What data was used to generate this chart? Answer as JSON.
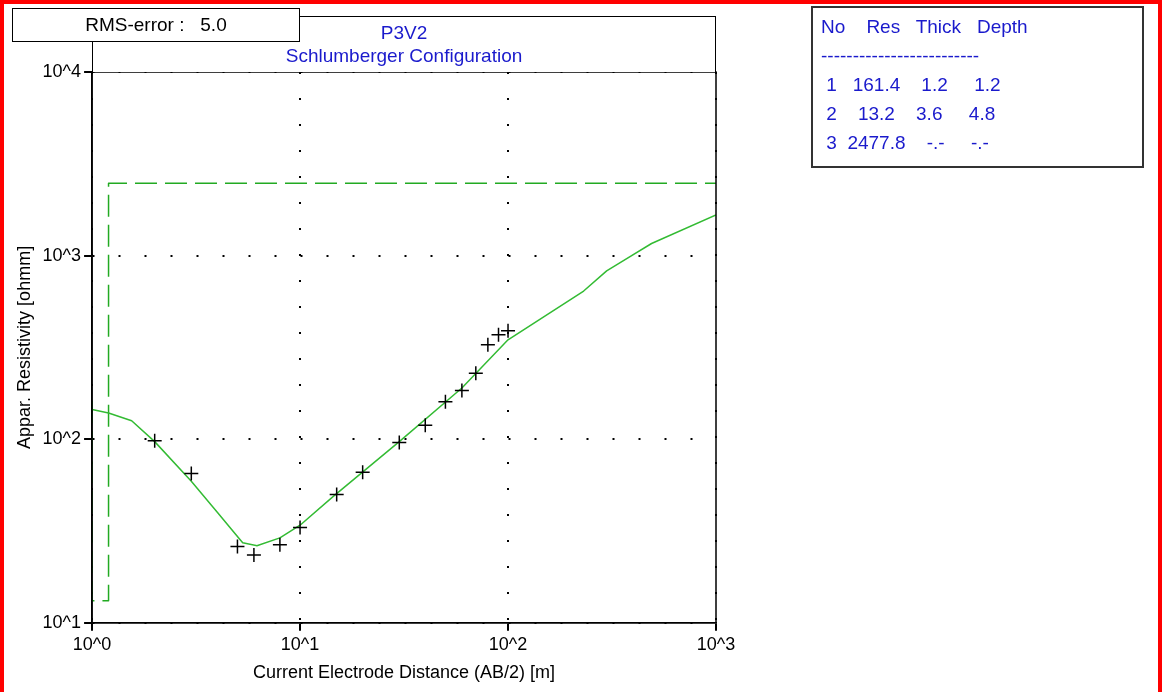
{
  "chart_data": {
    "type": "scatter",
    "title": "P3V2",
    "subtitle": "Schlumberger Configuration",
    "xlabel": "Current Electrode Distance (AB/2) [m]",
    "ylabel": "Appar. Resistivity [ohmm]",
    "log": "xy",
    "xlim": [
      1,
      1000
    ],
    "ylim": [
      10,
      10000
    ],
    "xticks": [
      {
        "value": 1,
        "label": "10^0"
      },
      {
        "value": 10,
        "label": "10^1"
      },
      {
        "value": 100,
        "label": "10^2"
      },
      {
        "value": 1000,
        "label": "10^3"
      }
    ],
    "yticks": [
      {
        "value": 10,
        "label": "10^1"
      },
      {
        "value": 100,
        "label": "10^2"
      },
      {
        "value": 1000,
        "label": "10^3"
      },
      {
        "value": 10000,
        "label": "10^4"
      }
    ],
    "grid": true,
    "legend": false,
    "series": [
      {
        "marker": "cross",
        "color": "#000000",
        "x": [
          2,
          3,
          5,
          6,
          8,
          10,
          15,
          20,
          30,
          40,
          50,
          60,
          70,
          80,
          90,
          100
        ],
        "values": [
          98,
          65,
          26,
          23.4,
          26.6,
          33,
          50,
          66,
          96,
          119,
          160,
          184,
          229,
          327,
          371,
          390
        ]
      },
      {
        "type": "line",
        "marker": "none",
        "color": "#33bb33",
        "x": [
          1,
          1.2,
          1.55,
          2,
          3,
          4,
          5,
          5.3,
          6.2,
          8,
          10,
          14.5,
          30,
          60,
          100,
          231,
          298,
          490,
          1000
        ],
        "values": [
          145,
          139,
          126,
          97,
          59,
          40,
          29.5,
          27.3,
          26.3,
          29,
          34,
          49,
          97,
          190,
          348,
          641,
          826,
          1164,
          1663
        ]
      },
      {
        "type": "step",
        "marker": "none",
        "line_style": "dashed",
        "color": "#22aa22",
        "x": [
          1,
          1.2,
          4.8,
          1000
        ],
        "values": [
          161.4,
          13.2,
          2477.8,
          2477.8
        ]
      }
    ],
    "annotations": [
      "RMS-error :   5.0",
      "No    Res   Thick   Depth",
      "-------------------------",
      " 1   161.4    1.2     1.2",
      " 2    13.2    3.6     4.8",
      " 3  2477.8    -.-     -.-"
    ]
  }
}
